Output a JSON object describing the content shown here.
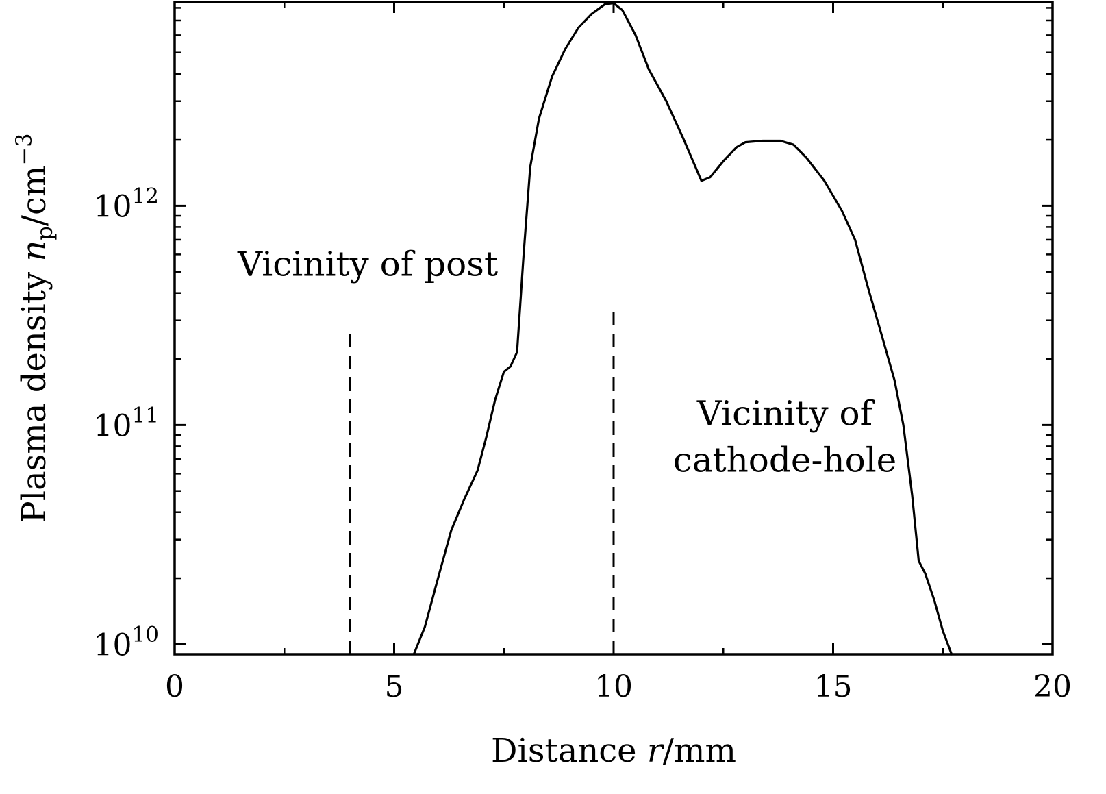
{
  "chart_data": {
    "type": "line",
    "xlabel": "Distance r/mm",
    "ylabel": "Plasma density n_p/cm^-3",
    "xlabel_parts": {
      "prefix": "Distance ",
      "var": "r",
      "unit": "/mm"
    },
    "ylabel_parts": {
      "prefix": "Plasma density ",
      "var": "n",
      "sub": "p",
      "unit": "/cm",
      "sup": "−3"
    },
    "xlim": [
      0,
      20
    ],
    "ylim": [
      9000000000,
      8500000000000
    ],
    "yscale": "log",
    "grid": false,
    "x_ticks": [
      {
        "value": 0,
        "label": "0"
      },
      {
        "value": 5,
        "label": "5"
      },
      {
        "value": 10,
        "label": "10"
      },
      {
        "value": 15,
        "label": "15"
      },
      {
        "value": 20,
        "label": "20"
      }
    ],
    "x_minor_ticks": [
      2.5,
      7.5,
      12.5,
      17.5
    ],
    "y_ticks": [
      {
        "value": 10000000000,
        "base": "10",
        "exp": "10"
      },
      {
        "value": 100000000000,
        "base": "10",
        "exp": "11"
      },
      {
        "value": 1000000000000,
        "base": "10",
        "exp": "12"
      }
    ],
    "series": [
      {
        "color": "#000000",
        "x": [
          5.45,
          5.7,
          6.0,
          6.3,
          6.6,
          6.9,
          7.1,
          7.3,
          7.5,
          7.65,
          7.8,
          7.95,
          8.1,
          8.3,
          8.6,
          8.9,
          9.2,
          9.5,
          9.8,
          10.0,
          10.2,
          10.5,
          10.8,
          11.2,
          11.6,
          12.0,
          12.2,
          12.5,
          12.8,
          13.0,
          13.4,
          13.8,
          14.1,
          14.4,
          14.8,
          15.2,
          15.5,
          15.8,
          16.1,
          16.4,
          16.6,
          16.8,
          16.95,
          17.1,
          17.3,
          17.5,
          17.7
        ],
        "y": [
          9000000000,
          12000000000,
          20000000000,
          33000000000,
          46000000000,
          62000000000,
          88000000000,
          130000000000,
          175000000000,
          185000000000,
          215000000000,
          600000000000,
          1500000000000,
          2500000000000,
          3900000000000,
          5200000000000,
          6500000000000,
          7500000000000,
          8300000000000,
          8400000000000,
          7800000000000,
          6000000000000,
          4200000000000,
          3000000000000,
          2000000000000,
          1300000000000,
          1350000000000,
          1600000000000,
          1850000000000,
          1950000000000,
          1980000000000,
          1980000000000,
          1900000000000,
          1650000000000,
          1300000000000,
          950000000000,
          700000000000,
          420000000000,
          260000000000,
          160000000000,
          100000000000,
          48000000000,
          24000000000,
          21000000000,
          16000000000,
          11500000000,
          9000000000
        ]
      }
    ],
    "vlines": [
      {
        "x": 4.0,
        "y_top": 280000000000,
        "style": "dashed"
      },
      {
        "x": 10.0,
        "y_top": 360000000000,
        "style": "dashed"
      }
    ],
    "annotations": [
      {
        "lines": [
          "Vicinity of post"
        ],
        "x": 4.4,
        "y": 480000000000
      },
      {
        "lines": [
          "Vicinity of",
          "cathode-hole"
        ],
        "x": 13.9,
        "y": 100000000000
      }
    ]
  }
}
